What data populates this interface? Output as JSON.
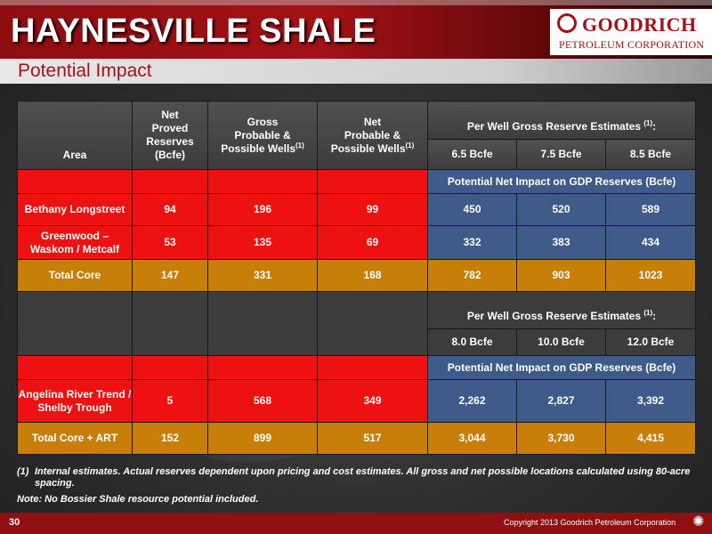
{
  "header": {
    "title": "HAYNESVILLE SHALE",
    "subtitle": "Potential Impact",
    "logo_name": "GOODRICH",
    "logo_sub": "PETROLEUM CORPORATION"
  },
  "table": {
    "col_area": "Area",
    "col_net_proved": [
      "Net",
      "Proved",
      "Reserves",
      "(Bcfe)"
    ],
    "col_gross_probable": [
      "Gross",
      "Probable &",
      "Possible Wells"
    ],
    "col_net_probable": [
      "Net",
      "Probable &",
      "Possible Wells"
    ],
    "footnote_mark": "(1)",
    "per_well_label": "Per Well Gross Reserve Estimates",
    "per_well_suffix": ":",
    "section1": {
      "estimates": [
        "6.5 Bcfe",
        "7.5 Bcfe",
        "8.5 Bcfe"
      ],
      "impact_label": "Potential Net Impact on GDP Reserves (Bcfe)",
      "rows": [
        {
          "area": "Bethany Longstreet",
          "net_proved": "94",
          "gross": "196",
          "net": "99",
          "e1": "450",
          "e2": "520",
          "e3": "589"
        },
        {
          "area": "Greenwood – Waskom / Metcalf",
          "net_proved": "53",
          "gross": "135",
          "net": "69",
          "e1": "332",
          "e2": "383",
          "e3": "434"
        }
      ],
      "total": {
        "area": "Total Core",
        "net_proved": "147",
        "gross": "331",
        "net": "168",
        "e1": "782",
        "e2": "903",
        "e3": "1023"
      }
    },
    "section2": {
      "estimates": [
        "8.0 Bcfe",
        "10.0 Bcfe",
        "12.0 Bcfe"
      ],
      "impact_label": "Potential Net Impact on GDP Reserves (Bcfe)",
      "rows": [
        {
          "area": "Angelina River Trend / Shelby Trough",
          "net_proved": "5",
          "gross": "568",
          "net": "349",
          "e1": "2,262",
          "e2": "2,827",
          "e3": "3,392"
        }
      ],
      "total": {
        "area": "Total Core + ART",
        "net_proved": "152",
        "gross": "899",
        "net": "517",
        "e1": "3,044",
        "e2": "3,730",
        "e3": "4,415"
      }
    }
  },
  "notes": {
    "note1_num": "(1)",
    "note1_text": "Internal estimates.  Actual reserves dependent upon pricing and cost estimates.  All gross and net possible locations calculated using 80-acre spacing.",
    "note2": "Note:  No Bossier Shale resource potential included."
  },
  "footer": {
    "page": "30",
    "copyright": "Copyright 2013 Goodrich Petroleum Corporation"
  },
  "colors": {
    "brand_red": "#a31216",
    "cell_red": "#ee1111",
    "cell_blue": "#3e5a88",
    "cell_gold": "#c77f0a"
  }
}
